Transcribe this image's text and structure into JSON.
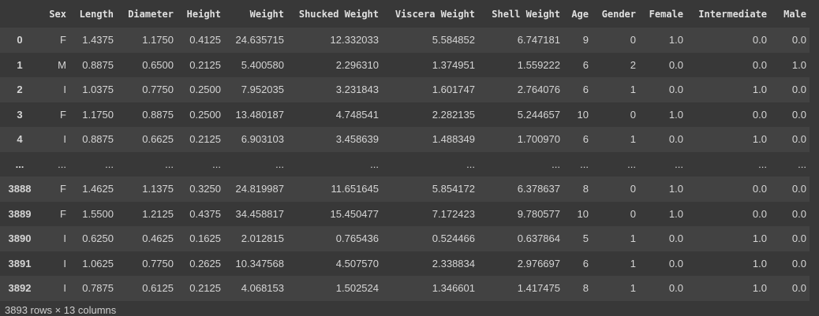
{
  "table": {
    "columns": [
      "Sex",
      "Length",
      "Diameter",
      "Height",
      "Weight",
      "Shucked Weight",
      "Viscera Weight",
      "Shell Weight",
      "Age",
      "Gender",
      "Female",
      "Intermediate",
      "Male"
    ],
    "rows": [
      {
        "index": "0",
        "cells": [
          "F",
          "1.4375",
          "1.1750",
          "0.4125",
          "24.635715",
          "12.332033",
          "5.584852",
          "6.747181",
          "9",
          "0",
          "1.0",
          "0.0",
          "0.0"
        ]
      },
      {
        "index": "1",
        "cells": [
          "M",
          "0.8875",
          "0.6500",
          "0.2125",
          "5.400580",
          "2.296310",
          "1.374951",
          "1.559222",
          "6",
          "2",
          "0.0",
          "0.0",
          "1.0"
        ]
      },
      {
        "index": "2",
        "cells": [
          "I",
          "1.0375",
          "0.7750",
          "0.2500",
          "7.952035",
          "3.231843",
          "1.601747",
          "2.764076",
          "6",
          "1",
          "0.0",
          "1.0",
          "0.0"
        ]
      },
      {
        "index": "3",
        "cells": [
          "F",
          "1.1750",
          "0.8875",
          "0.2500",
          "13.480187",
          "4.748541",
          "2.282135",
          "5.244657",
          "10",
          "0",
          "1.0",
          "0.0",
          "0.0"
        ]
      },
      {
        "index": "4",
        "cells": [
          "I",
          "0.8875",
          "0.6625",
          "0.2125",
          "6.903103",
          "3.458639",
          "1.488349",
          "1.700970",
          "6",
          "1",
          "0.0",
          "1.0",
          "0.0"
        ]
      },
      {
        "index": "...",
        "cells": [
          "...",
          "...",
          "...",
          "...",
          "...",
          "...",
          "...",
          "...",
          "...",
          "...",
          "...",
          "...",
          "..."
        ]
      },
      {
        "index": "3888",
        "cells": [
          "F",
          "1.4625",
          "1.1375",
          "0.3250",
          "24.819987",
          "11.651645",
          "5.854172",
          "6.378637",
          "8",
          "0",
          "1.0",
          "0.0",
          "0.0"
        ]
      },
      {
        "index": "3889",
        "cells": [
          "F",
          "1.5500",
          "1.2125",
          "0.4375",
          "34.458817",
          "15.450477",
          "7.172423",
          "9.780577",
          "10",
          "0",
          "1.0",
          "0.0",
          "0.0"
        ]
      },
      {
        "index": "3890",
        "cells": [
          "I",
          "0.6250",
          "0.4625",
          "0.1625",
          "2.012815",
          "0.765436",
          "0.524466",
          "0.637864",
          "5",
          "1",
          "0.0",
          "1.0",
          "0.0"
        ]
      },
      {
        "index": "3891",
        "cells": [
          "I",
          "1.0625",
          "0.7750",
          "0.2625",
          "10.347568",
          "4.507570",
          "2.338834",
          "2.976697",
          "6",
          "1",
          "0.0",
          "1.0",
          "0.0"
        ]
      },
      {
        "index": "3892",
        "cells": [
          "I",
          "0.7875",
          "0.6125",
          "0.2125",
          "4.068153",
          "1.502524",
          "1.346601",
          "1.417475",
          "8",
          "1",
          "0.0",
          "1.0",
          "0.0"
        ]
      }
    ],
    "footer": "3893 rows × 13 columns"
  }
}
